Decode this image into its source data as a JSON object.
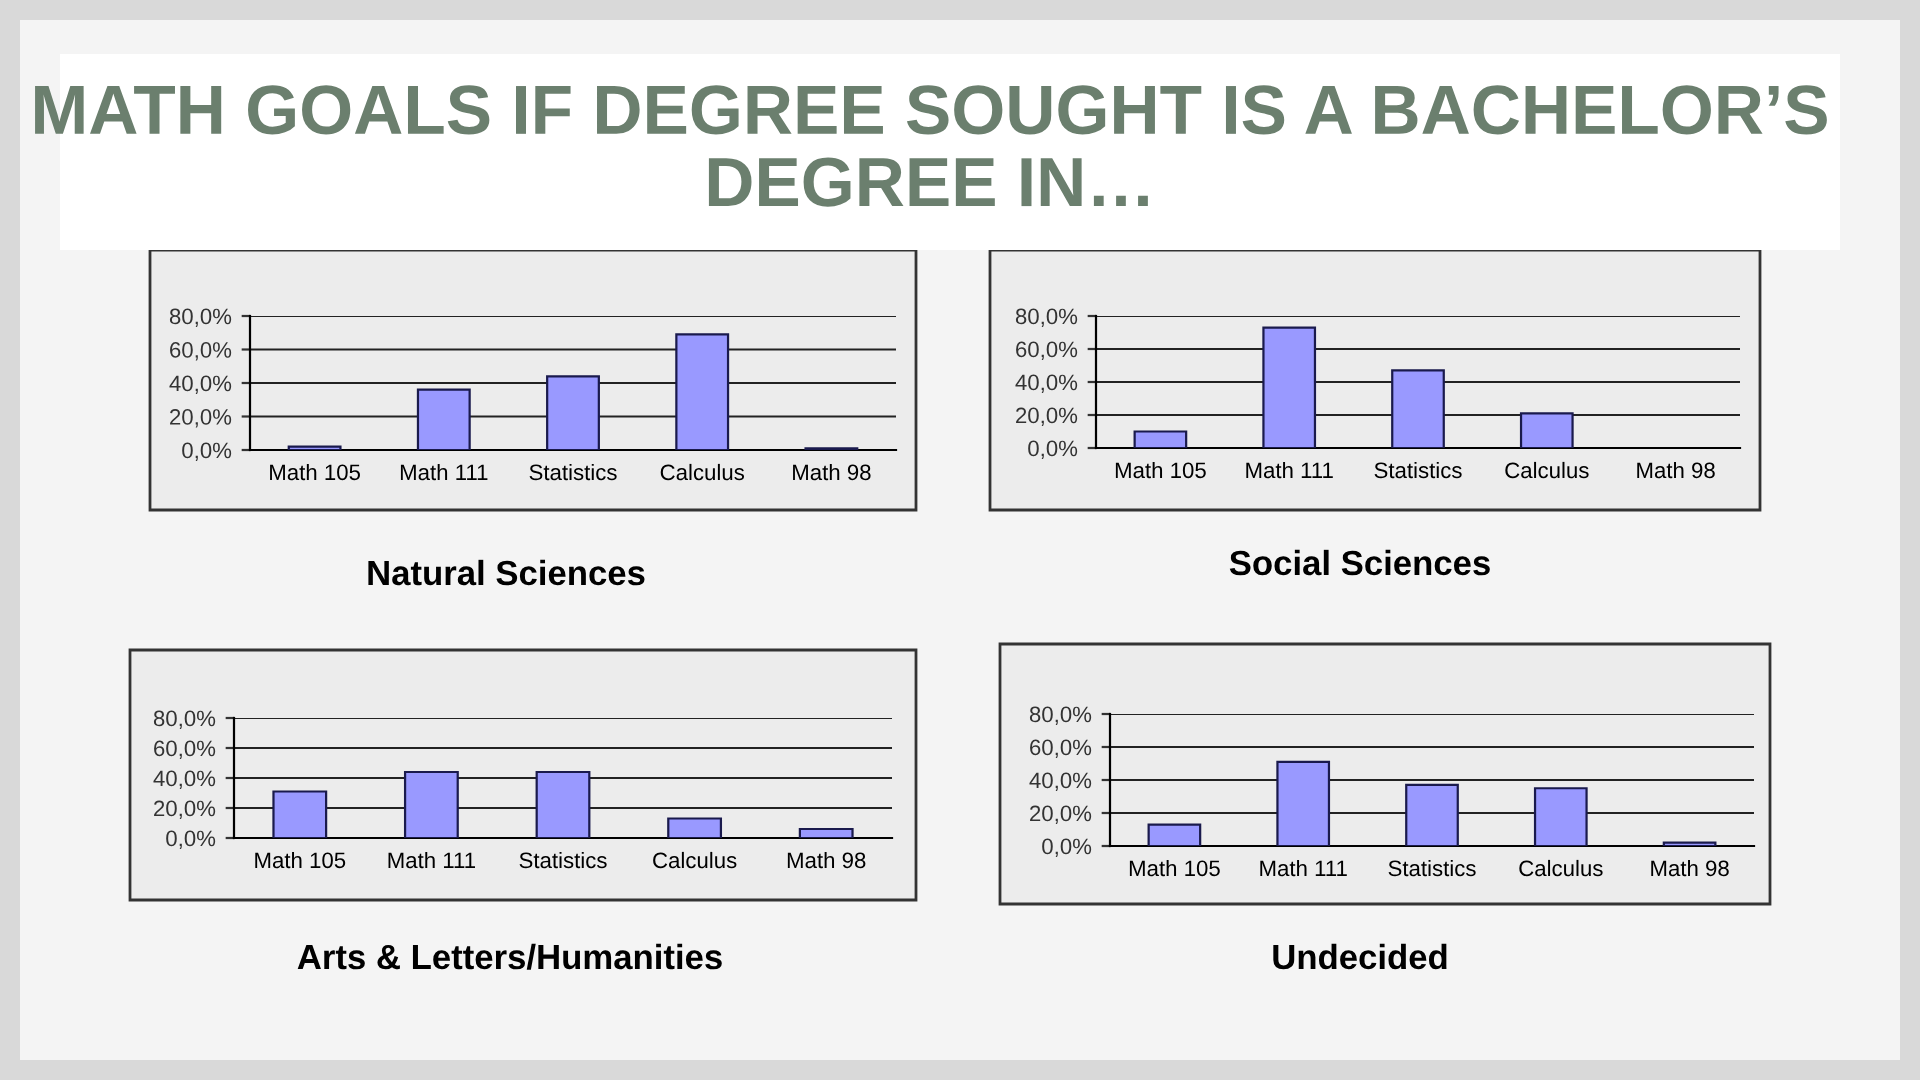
{
  "chart_data": [
    {
      "type": "bar",
      "title": "Natural Sciences",
      "annotations": [
        "MATH GOALS IF DEGREE SOUGHT IS A BACHELOR’S DEGREE IN…"
      ],
      "categories": [
        "Math 105",
        "Math 111",
        "Statistics",
        "Calculus",
        "Math 98"
      ],
      "values": [
        2,
        36,
        44,
        69,
        1
      ],
      "color": "#9999ff",
      "ylim": [
        0,
        80
      ],
      "yticks": [
        {
          "value": 0,
          "label": "0,0%"
        },
        {
          "value": 20,
          "label": "20,0%"
        },
        {
          "value": 40,
          "label": "40,0%"
        },
        {
          "value": 60,
          "label": "60,0%"
        },
        {
          "value": 80,
          "label": "80,0%"
        }
      ],
      "grid": "y"
    },
    {
      "type": "bar",
      "title": "Social Sciences",
      "categories": [
        "Math 105",
        "Math 111",
        "Statistics",
        "Calculus",
        "Math 98"
      ],
      "values": [
        10,
        73,
        47,
        21,
        null
      ],
      "color": "#9999ff",
      "ylim": [
        0,
        80
      ],
      "yticks": [
        {
          "value": 0,
          "label": "0,0%"
        },
        {
          "value": 20,
          "label": "20,0%"
        },
        {
          "value": 40,
          "label": "40,0%"
        },
        {
          "value": 60,
          "label": "60,0%"
        },
        {
          "value": 80,
          "label": "80,0%"
        }
      ],
      "grid": "y"
    },
    {
      "type": "bar",
      "title": "Arts & Letters/Humanities",
      "categories": [
        "Math 105",
        "Math 111",
        "Statistics",
        "Calculus",
        "Math 98"
      ],
      "values": [
        31,
        44,
        44,
        13,
        6
      ],
      "color": "#9999ff",
      "ylim": [
        0,
        80
      ],
      "yticks": [
        {
          "value": 0,
          "label": "0,0%"
        },
        {
          "value": 20,
          "label": "20,0%"
        },
        {
          "value": 40,
          "label": "40,0%"
        },
        {
          "value": 60,
          "label": "60,0%"
        },
        {
          "value": 80,
          "label": "80,0%"
        }
      ],
      "grid": "y"
    },
    {
      "type": "bar",
      "title": "Undecided",
      "categories": [
        "Math 105",
        "Math 111",
        "Statistics",
        "Calculus",
        "Math 98"
      ],
      "values": [
        13,
        51,
        37,
        35,
        2
      ],
      "color": "#9999ff",
      "ylim": [
        0,
        80
      ],
      "yticks": [
        {
          "value": 0,
          "label": "0,0%"
        },
        {
          "value": 20,
          "label": "20,0%"
        },
        {
          "value": 40,
          "label": "40,0%"
        },
        {
          "value": 60,
          "label": "60,0%"
        },
        {
          "value": 80,
          "label": "80,0%"
        }
      ],
      "grid": "y"
    }
  ]
}
